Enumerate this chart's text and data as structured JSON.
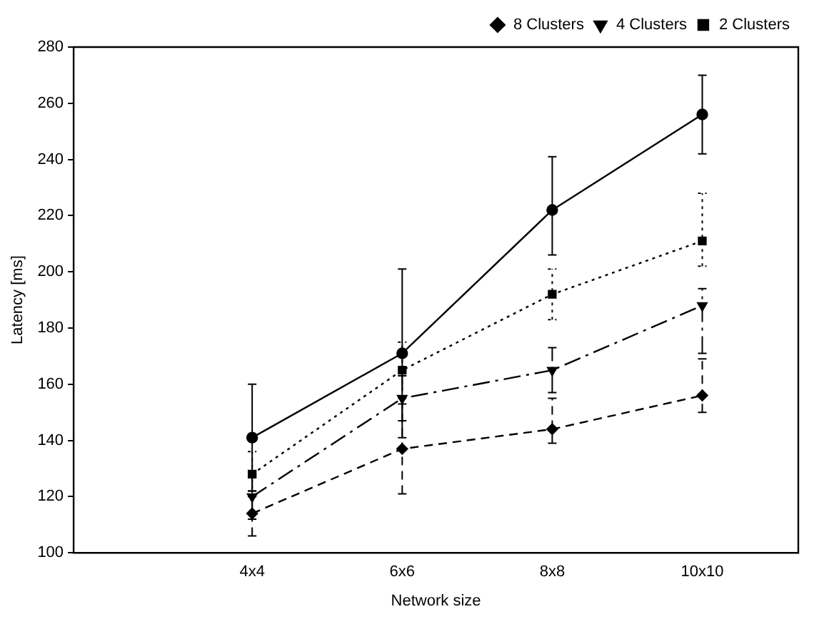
{
  "chart_data": {
    "type": "line",
    "xlabel": "Network size",
    "ylabel": "Latency [ms]",
    "categories": [
      "4x4",
      "6x6",
      "8x8",
      "10x10"
    ],
    "ylim": [
      100,
      280
    ],
    "yticks": [
      100,
      120,
      140,
      160,
      180,
      200,
      220,
      240,
      260,
      280
    ],
    "grid": false,
    "legend": "top right",
    "series": [
      {
        "name": "8 Clusters",
        "color": "#000000",
        "marker": "diamond",
        "line_style": "dashed",
        "values": [
          114,
          137,
          144,
          156
        ],
        "errors": [
          8,
          16,
          [
            139,
            155
          ],
          [
            150,
            169
          ]
        ]
      },
      {
        "name": "4 Clusters",
        "color": "#000000",
        "marker": "triangle",
        "line_style": "dashdot",
        "values": [
          120,
          155,
          165,
          188
        ],
        "errors": [
          [
            112,
            128
          ],
          [
            147,
            163
          ],
          [
            157,
            173
          ],
          [
            171,
            194
          ]
        ]
      },
      {
        "name": "2 Clusters",
        "color": "#000000",
        "marker": "square",
        "line_style": "dotted",
        "values": [
          128,
          165,
          192,
          211
        ],
        "errors": [
          [
            120,
            136
          ],
          [
            155,
            175
          ],
          [
            183,
            201
          ],
          [
            202,
            228
          ]
        ]
      },
      {
        "color": "#000000",
        "marker": "circle",
        "line_style": "solid",
        "values": [
          141,
          171,
          222,
          256
        ],
        "errors": [
          19,
          30,
          [
            206,
            241
          ],
          14
        ]
      }
    ]
  }
}
